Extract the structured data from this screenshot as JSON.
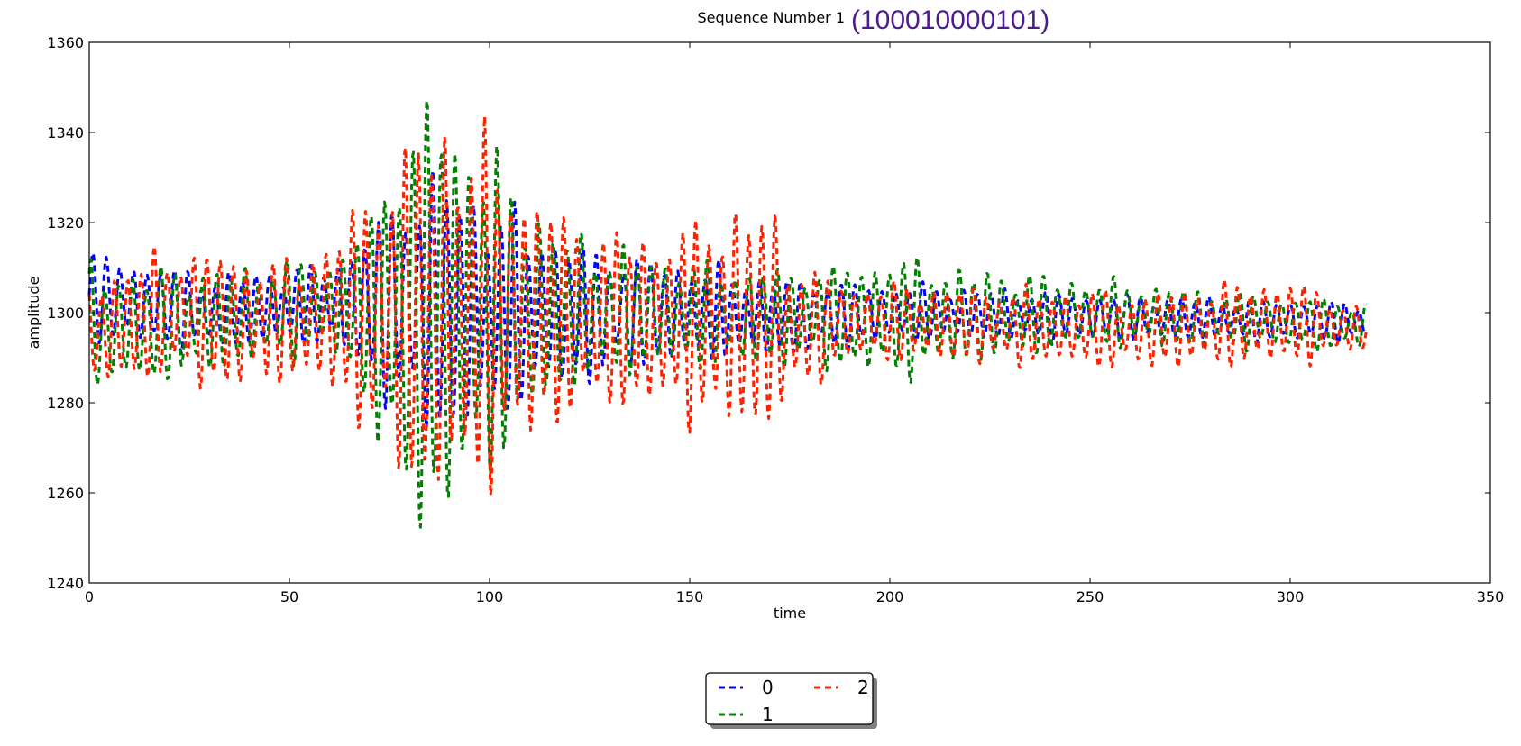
{
  "chart_data": {
    "type": "line",
    "title": "Sequence Number 1",
    "title_sequence": "(100010000101)",
    "title_sequence_color": "#4b1c8c",
    "xlabel": "time",
    "ylabel": "amplitude",
    "xlim": [
      0,
      350
    ],
    "ylim": [
      1240,
      1360
    ],
    "xticks": [
      "0",
      "50",
      "100",
      "150",
      "200",
      "250",
      "300",
      "350"
    ],
    "yticks": [
      "1240",
      "1260",
      "1280",
      "1300",
      "1320",
      "1340",
      "1360"
    ],
    "grid": false,
    "legend_placement": "bottom-center",
    "line_style": "dashed",
    "x_range": [
      0,
      319
    ],
    "series": [
      {
        "name": "0",
        "color": "#0000ff",
        "period": 3.4,
        "phase": 0.0,
        "envelope": [
          [
            0,
            1304,
            9
          ],
          [
            30,
            1300,
            8
          ],
          [
            60,
            1302,
            8
          ],
          [
            75,
            1302,
            20
          ],
          [
            85,
            1302,
            28
          ],
          [
            95,
            1300,
            26
          ],
          [
            110,
            1300,
            18
          ],
          [
            130,
            1300,
            13
          ],
          [
            150,
            1300,
            10
          ],
          [
            175,
            1299,
            8
          ],
          [
            200,
            1300,
            6
          ],
          [
            250,
            1299,
            5
          ],
          [
            319,
            1298,
            4
          ]
        ]
      },
      {
        "name": "1",
        "color": "#007f00",
        "period": 3.5,
        "phase": 0.9,
        "envelope": [
          [
            0,
            1296,
            13
          ],
          [
            30,
            1298,
            11
          ],
          [
            60,
            1302,
            10
          ],
          [
            70,
            1300,
            20
          ],
          [
            78,
            1298,
            42
          ],
          [
            85,
            1300,
            46
          ],
          [
            95,
            1300,
            40
          ],
          [
            105,
            1300,
            28
          ],
          [
            120,
            1300,
            16
          ],
          [
            140,
            1300,
            12
          ],
          [
            160,
            1299,
            11
          ],
          [
            180,
            1299,
            10
          ],
          [
            200,
            1299,
            13
          ],
          [
            220,
            1299,
            10
          ],
          [
            250,
            1300,
            7
          ],
          [
            319,
            1297,
            5
          ]
        ]
      },
      {
        "name": "2",
        "color": "#ff2200",
        "period": 3.3,
        "phase": 2.1,
        "envelope": [
          [
            0,
            1295,
            12
          ],
          [
            20,
            1300,
            13
          ],
          [
            35,
            1298,
            15
          ],
          [
            50,
            1298,
            12
          ],
          [
            65,
            1300,
            20
          ],
          [
            75,
            1300,
            32
          ],
          [
            87,
            1300,
            42
          ],
          [
            100,
            1300,
            35
          ],
          [
            112,
            1300,
            26
          ],
          [
            125,
            1298,
            18
          ],
          [
            150,
            1298,
            20
          ],
          [
            160,
            1298,
            25
          ],
          [
            172,
            1298,
            22
          ],
          [
            176,
            1296,
            14
          ],
          [
            190,
            1298,
            8
          ],
          [
            230,
            1297,
            8
          ],
          [
            260,
            1296,
            8
          ],
          [
            300,
            1298,
            9
          ],
          [
            319,
            1296,
            4
          ]
        ]
      }
    ]
  }
}
